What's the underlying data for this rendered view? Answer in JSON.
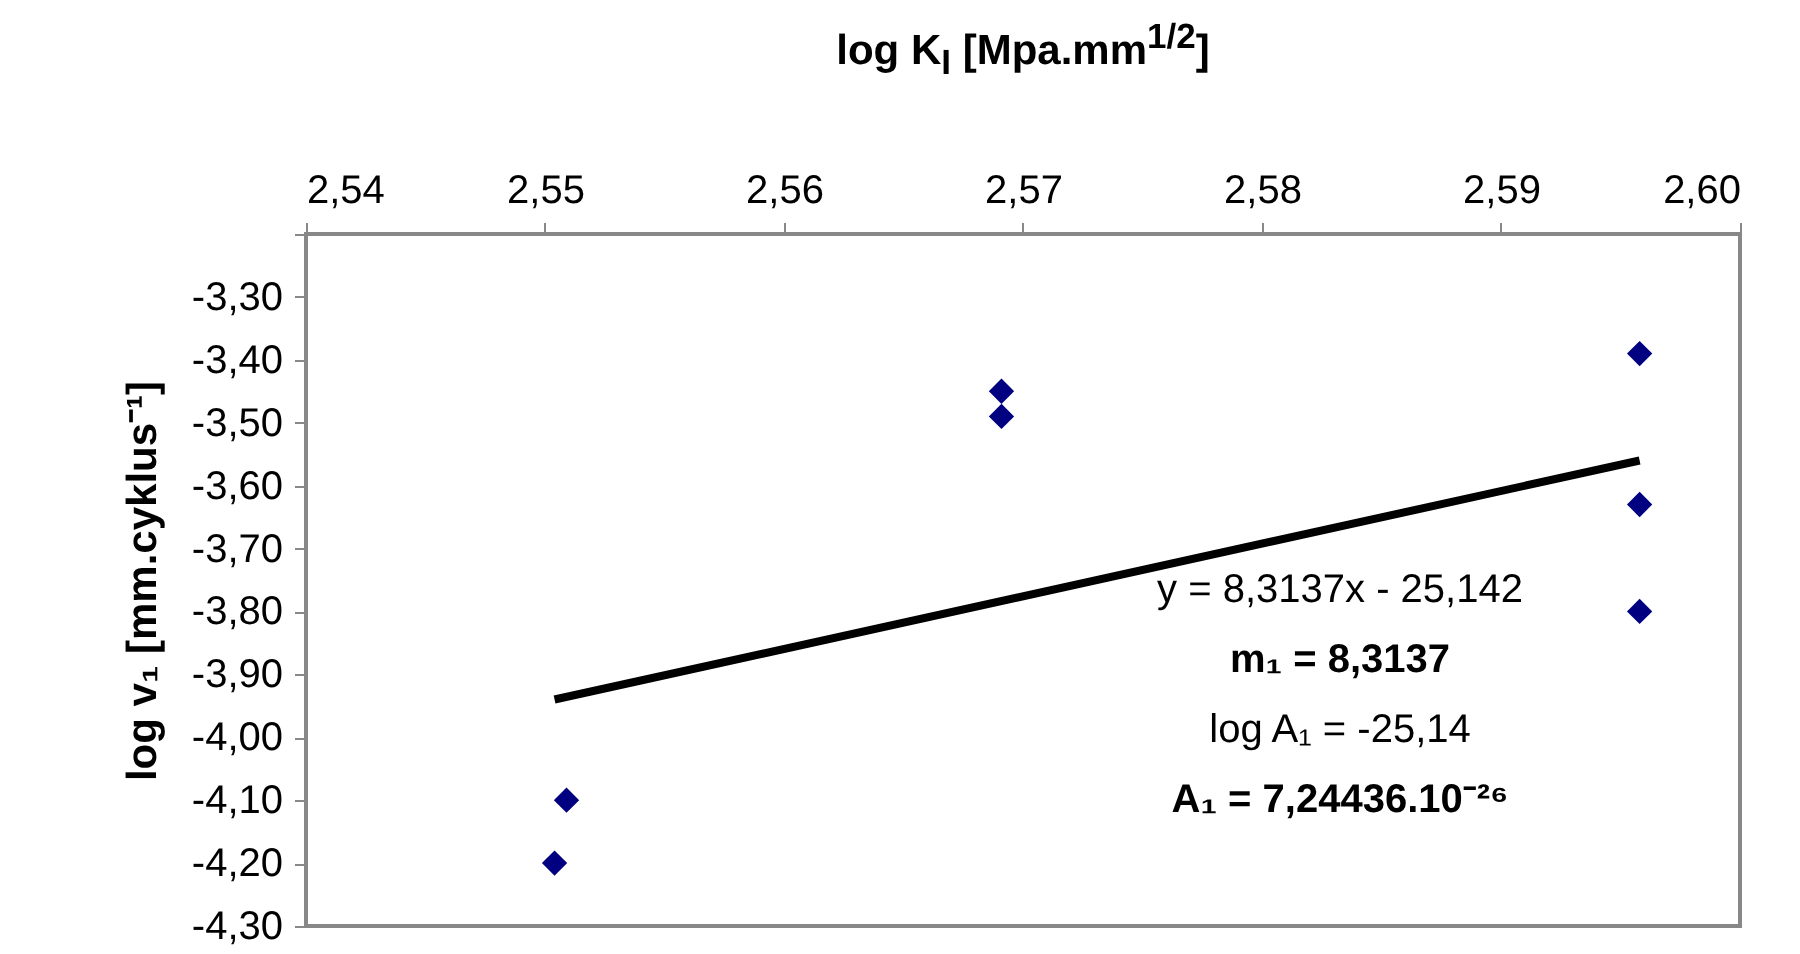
{
  "chart_data": {
    "type": "scatter",
    "xlabel": "log K$_{I}$ [Mpa.mm$^{1/2}$]",
    "ylabel": "log v₁ [mm.cyklus⁻¹]",
    "xlim": [
      2.54,
      2.6
    ],
    "xticks": [
      {
        "value": 2.54,
        "label": "2,54"
      },
      {
        "value": 2.55,
        "label": "2,55"
      },
      {
        "value": 2.56,
        "label": "2,56"
      },
      {
        "value": 2.57,
        "label": "2,57"
      },
      {
        "value": 2.58,
        "label": "2,58"
      },
      {
        "value": 2.59,
        "label": "2,59"
      },
      {
        "value": 2.6,
        "label": "2,60"
      }
    ],
    "ylim": [
      -4.3,
      -3.2
    ],
    "yticks": [
      {
        "value": -4.3,
        "label": "-4,30"
      },
      {
        "value": -4.2,
        "label": "-4,20"
      },
      {
        "value": -4.1,
        "label": "-4,10"
      },
      {
        "value": -4.0,
        "label": "-4,00"
      },
      {
        "value": -3.9,
        "label": "-3,90"
      },
      {
        "value": -3.8,
        "label": "-3,80"
      },
      {
        "value": -3.7,
        "label": "-3,70"
      },
      {
        "value": -3.6,
        "label": "-3,60"
      },
      {
        "value": -3.5,
        "label": "-3,50"
      },
      {
        "value": -3.4,
        "label": "-3,40"
      },
      {
        "value": -3.3,
        "label": "-3,30"
      },
      {
        "value": -3.2,
        "label": null
      }
    ],
    "grid": false,
    "series": [
      {
        "marker": "diamond",
        "color": "#000080",
        "x": [
          2.5504,
          2.5509,
          2.5691,
          2.5691,
          2.5958,
          2.5958,
          2.5958
        ],
        "values": [
          -4.2,
          -4.1,
          -3.45,
          -3.49,
          -3.39,
          -3.63,
          -3.8
        ]
      },
      {
        "type": "line",
        "color": "#000000",
        "x": [
          2.5504,
          2.5958
        ],
        "values": [
          -3.94,
          -3.56
        ]
      }
    ],
    "annotations": [
      "y = 8,3137x - 25,142",
      "m₁ = 8,3137",
      "log A₁ = -25,14",
      "A₁ = 7,24436.10⁻²⁶"
    ]
  }
}
